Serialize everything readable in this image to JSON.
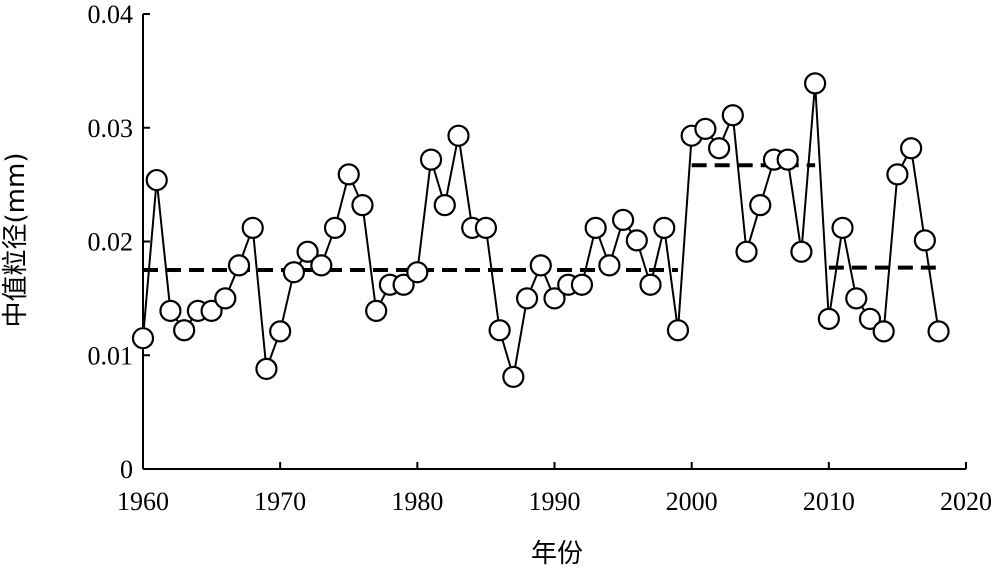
{
  "chart_data": {
    "type": "line",
    "xlabel": "年份",
    "ylabel": "中值粒径(mm)",
    "xlim": [
      1960,
      2020
    ],
    "ylim": [
      0,
      0.04
    ],
    "x_ticks": [
      1960,
      1970,
      1980,
      1990,
      2000,
      2010,
      2020
    ],
    "x_tick_labels": [
      "1960",
      "1970",
      "1980",
      "1990",
      "2000",
      "2010",
      "2020"
    ],
    "y_ticks": [
      0,
      0.01,
      0.02,
      0.03,
      0.04
    ],
    "y_tick_labels": [
      "0",
      "0.01",
      "0.02",
      "0.03",
      "0.04"
    ],
    "grid": false,
    "series": [
      {
        "style": "solid line with open circle markers",
        "color": "#000000",
        "x": [
          1960,
          1961,
          1962,
          1963,
          1964,
          1965,
          1966,
          1967,
          1968,
          1969,
          1970,
          1971,
          1972,
          1973,
          1974,
          1975,
          1976,
          1977,
          1978,
          1979,
          1980,
          1981,
          1982,
          1983,
          1984,
          1985,
          1986,
          1987,
          1988,
          1989,
          1990,
          1991,
          1992,
          1993,
          1994,
          1995,
          1996,
          1997,
          1998,
          1999,
          2000,
          2001,
          2002,
          2003,
          2004,
          2005,
          2006,
          2007,
          2008,
          2009,
          2010,
          2011,
          2012,
          2013,
          2014,
          2015,
          2016,
          2017,
          2018
        ],
        "y": [
          0.0115,
          0.0254,
          0.0139,
          0.0122,
          0.0139,
          0.0139,
          0.015,
          0.0179,
          0.0212,
          0.0088,
          0.0121,
          0.0173,
          0.0191,
          0.0179,
          0.0212,
          0.0259,
          0.0232,
          0.0139,
          0.0162,
          0.0162,
          0.0173,
          0.0272,
          0.0232,
          0.0293,
          0.0212,
          0.0212,
          0.0122,
          0.0081,
          0.015,
          0.0179,
          0.015,
          0.0162,
          0.0162,
          0.0212,
          0.0179,
          0.0219,
          0.0201,
          0.0162,
          0.0212,
          0.0122,
          0.0293,
          0.0299,
          0.0282,
          0.0311,
          0.0191,
          0.0232,
          0.0272,
          0.0272,
          0.0191,
          0.0339,
          0.0132,
          0.0212,
          0.015,
          0.0132,
          0.0121,
          0.0259,
          0.0282,
          0.0201,
          0.0121
        ]
      },
      {
        "style": "dashed segment means",
        "color": "#000000",
        "segments": [
          {
            "x": [
              1960,
              1999
            ],
            "y": 0.0175
          },
          {
            "x": [
              2000,
              2009
            ],
            "y": 0.0267
          },
          {
            "x": [
              2010,
              2018
            ],
            "y": 0.0177
          }
        ]
      }
    ]
  }
}
